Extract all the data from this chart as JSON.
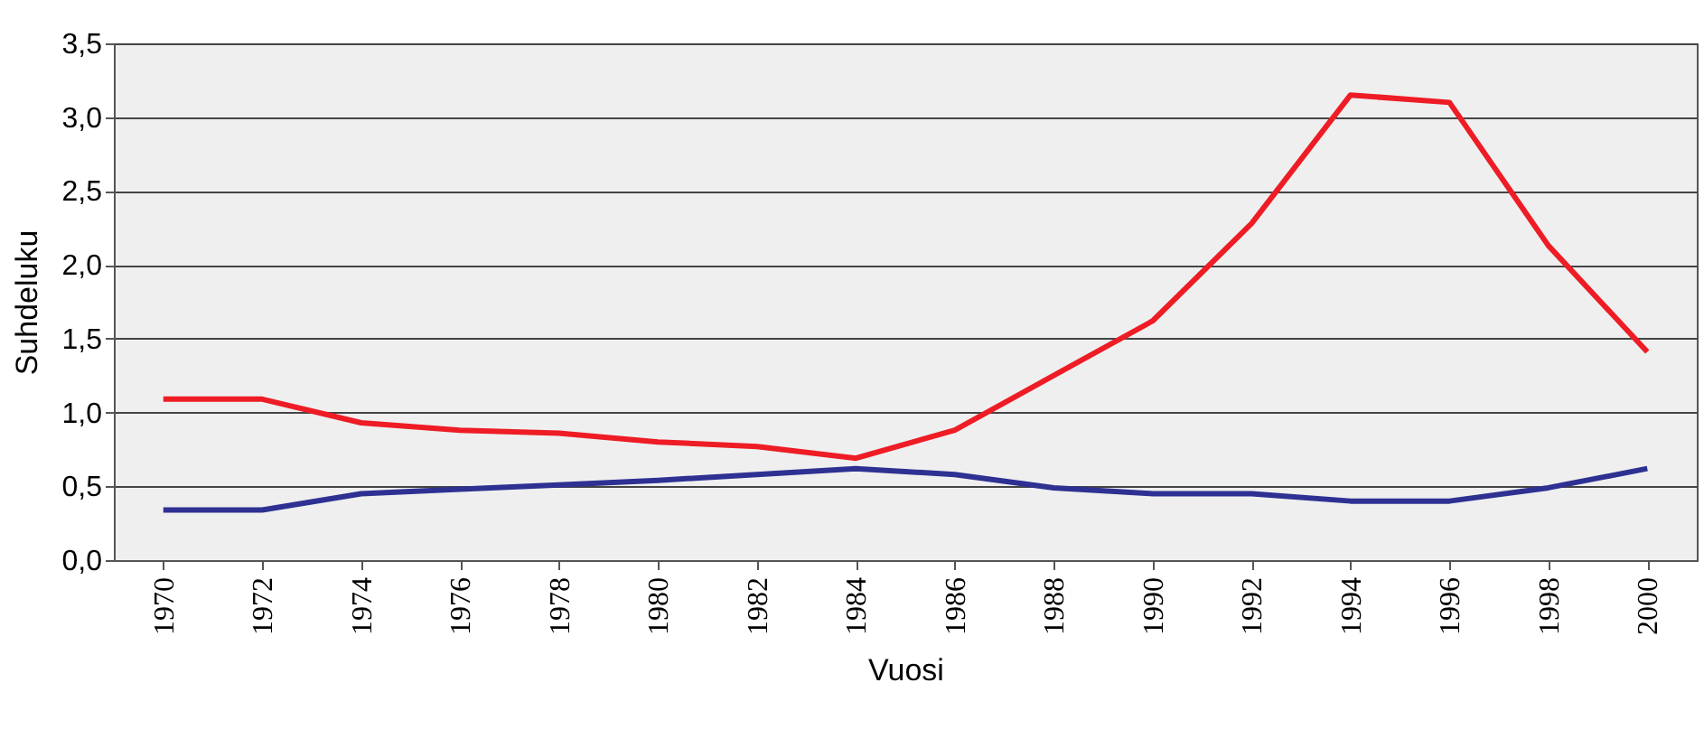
{
  "chart_data": {
    "type": "line",
    "xlabel": "Vuosi",
    "ylabel": "Suhdeluku",
    "categories": [
      "1970",
      "1972",
      "1974",
      "1976",
      "1978",
      "1980",
      "1982",
      "1984",
      "1986",
      "1988",
      "1990",
      "1992",
      "1994",
      "1996",
      "1998",
      "2000"
    ],
    "series": [
      {
        "color": "#ee1c25",
        "values": [
          1.09,
          1.09,
          0.93,
          0.88,
          0.86,
          0.8,
          0.77,
          0.69,
          0.88,
          1.25,
          1.62,
          2.28,
          3.15,
          3.1,
          2.13,
          1.41
        ]
      },
      {
        "color": "#2e3192",
        "values": [
          0.34,
          0.34,
          0.45,
          0.48,
          0.51,
          0.54,
          0.58,
          0.62,
          0.58,
          0.49,
          0.45,
          0.45,
          0.4,
          0.4,
          0.49,
          0.62
        ]
      }
    ],
    "ylim": [
      0,
      3.5
    ],
    "yticks": [
      {
        "value": 0,
        "label": "0,0"
      },
      {
        "value": 0.5,
        "label": "0,5"
      },
      {
        "value": 1,
        "label": "1,0"
      },
      {
        "value": 1.5,
        "label": "1,5"
      },
      {
        "value": 2,
        "label": "2,0"
      },
      {
        "value": 2.5,
        "label": "2,5"
      },
      {
        "value": 3,
        "label": "3,0"
      },
      {
        "value": 3.5,
        "label": "3,5"
      }
    ],
    "grid": "y",
    "legend": false,
    "marker": "none",
    "line_style": "solid"
  }
}
